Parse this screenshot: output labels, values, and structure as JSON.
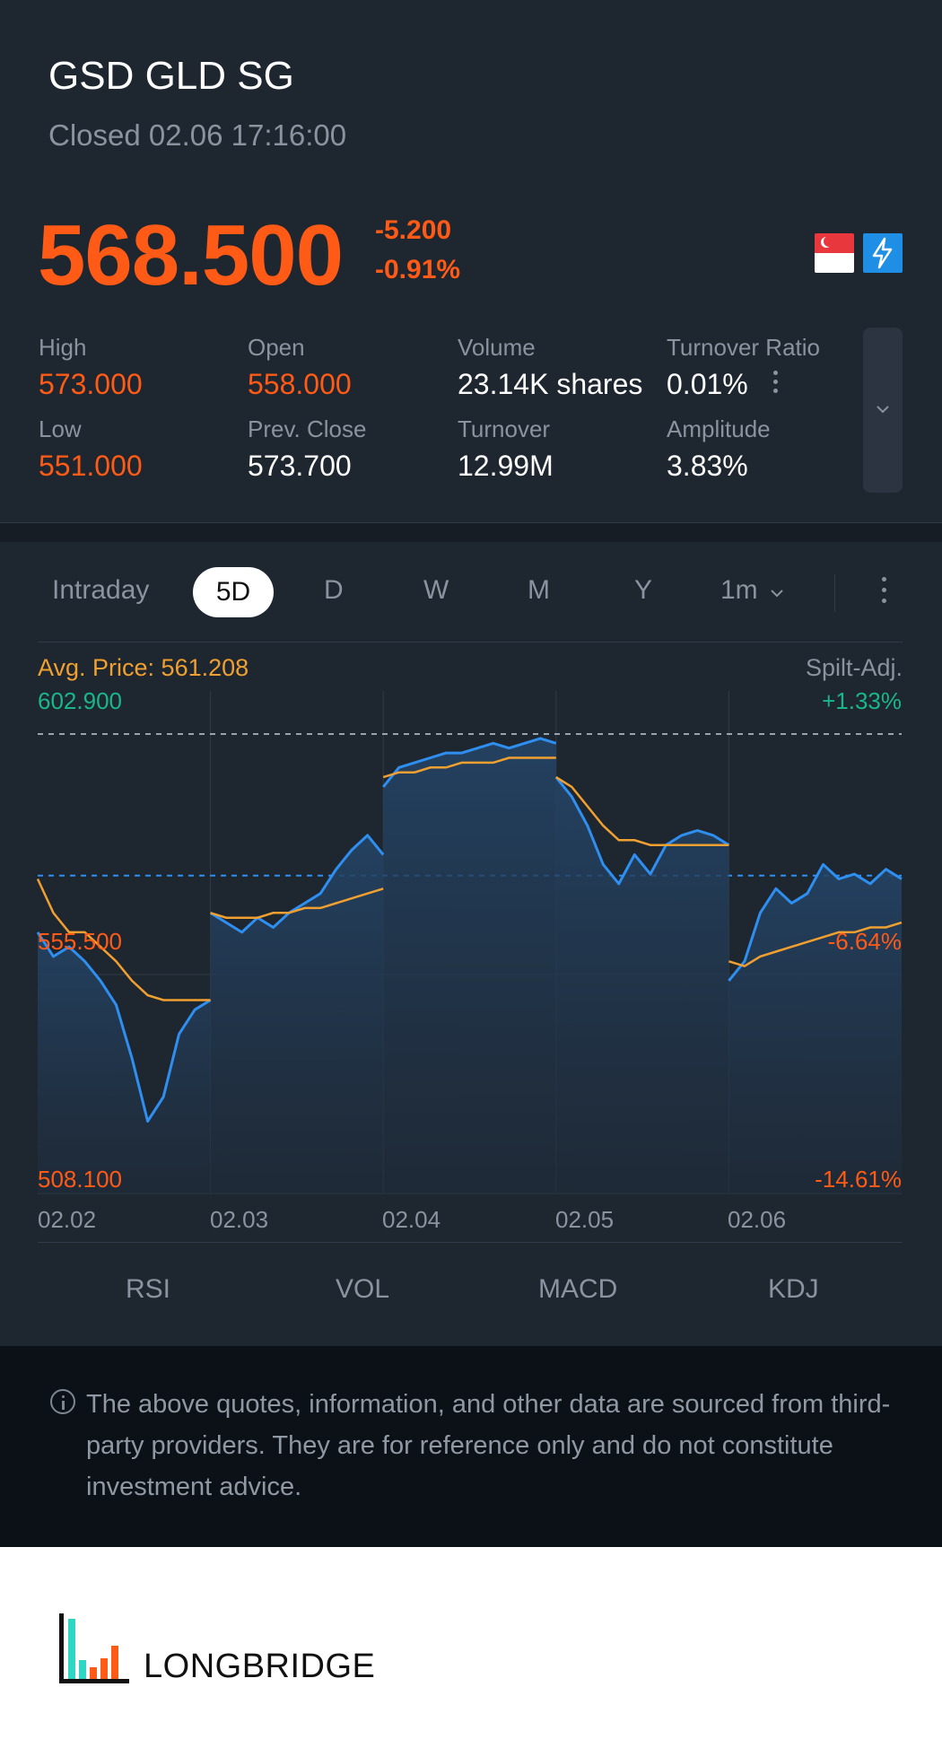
{
  "header": {
    "title": "GSD GLD SG",
    "status": "Closed 02.06 17:16:00",
    "price": "568.500",
    "change": "-5.200",
    "change_pct": "-0.91%"
  },
  "stats": {
    "high_label": "High",
    "high": "573.000",
    "open_label": "Open",
    "open": "558.000",
    "volume_label": "Volume",
    "volume": "23.14K shares",
    "turnover_ratio_label": "Turnover Ratio",
    "turnover_ratio": "0.01%",
    "low_label": "Low",
    "low": "551.000",
    "prev_close_label": "Prev. Close",
    "prev_close": "573.700",
    "turnover_label": "Turnover",
    "turnover": "12.99M",
    "amplitude_label": "Amplitude",
    "amplitude": "3.83%"
  },
  "tabs": [
    "Intraday",
    "5D",
    "D",
    "W",
    "M",
    "Y",
    "1m"
  ],
  "active_tab": "5D",
  "chart_header": {
    "avg_label": "Avg. Price: 561.208",
    "adj_label": "Spilt-Adj."
  },
  "chart_labels": {
    "y_top": "602.900",
    "y_mid": "555.500",
    "y_bot": "508.100",
    "pct_top": "+1.33%",
    "pct_mid": "-6.64%",
    "pct_bot": "-14.61%",
    "dates": [
      "02.02",
      "02.03",
      "02.04",
      "02.05",
      "02.06"
    ]
  },
  "chart_data": {
    "type": "line",
    "title": "",
    "x": [
      "02.02",
      "02.03",
      "02.04",
      "02.05",
      "02.06"
    ],
    "ylim": [
      508.1,
      602.9
    ],
    "reference_line": 573.7,
    "series": [
      {
        "color": "#2f8ff0",
        "values": [
          [
            562,
            557,
            559,
            556,
            552,
            547,
            536,
            523,
            528,
            541,
            546,
            548
          ],
          [
            566,
            564,
            562,
            565,
            563,
            566,
            568,
            570,
            575,
            579,
            582,
            578
          ],
          [
            592,
            596,
            597,
            598,
            599,
            599,
            600,
            601,
            600,
            601,
            602,
            601
          ],
          [
            594,
            590,
            584,
            576,
            572,
            578,
            574,
            580,
            582,
            583,
            582,
            580
          ],
          [
            552,
            556,
            566,
            571,
            568,
            570,
            576,
            573,
            574,
            572,
            575,
            573
          ]
        ]
      },
      {
        "color": "#f0a030",
        "values": [
          [
            573,
            566,
            562,
            562,
            559,
            556,
            552,
            549,
            548,
            548,
            548,
            548
          ],
          [
            566,
            565,
            565,
            565,
            566,
            566,
            567,
            567,
            568,
            569,
            570,
            571
          ],
          [
            594,
            595,
            595,
            596,
            596,
            597,
            597,
            597,
            598,
            598,
            598,
            598
          ],
          [
            594,
            592,
            588,
            584,
            581,
            581,
            580,
            580,
            580,
            580,
            580,
            580
          ],
          [
            556,
            555,
            557,
            558,
            559,
            560,
            561,
            562,
            562,
            563,
            563,
            564
          ]
        ]
      }
    ]
  },
  "indicators": [
    "RSI",
    "VOL",
    "MACD",
    "KDJ"
  ],
  "disclaimer": "The above quotes, information, and other data are sourced from third-party providers. They are for reference only and do not constitute investment advice.",
  "brand": "LONGBRIDGE",
  "colors": {
    "down": "#ff5a16",
    "up": "#1ab68a",
    "line": "#2f8ff0",
    "avg": "#f0a030"
  }
}
